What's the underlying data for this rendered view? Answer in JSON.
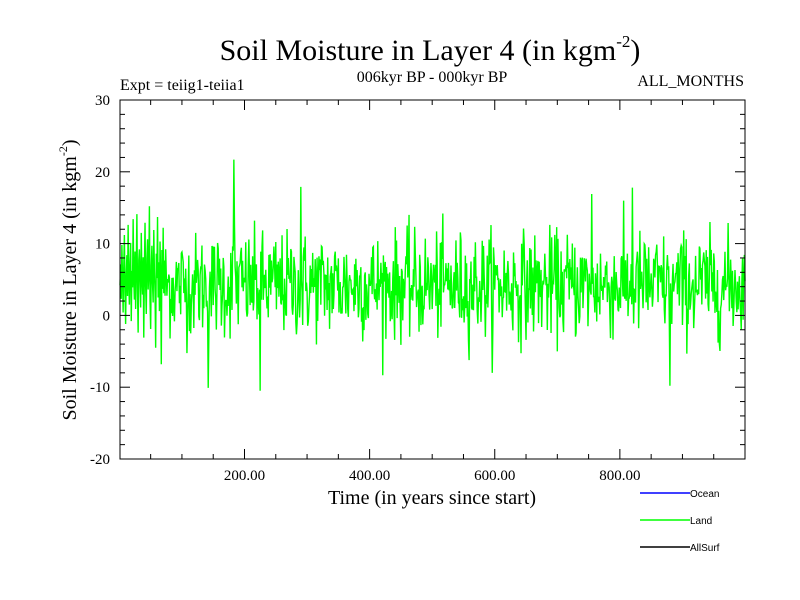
{
  "chart_data": {
    "type": "line",
    "title_main": "Soil Moisture in Layer 4 (in kgm",
    "title_sup": "-2",
    "title_close": ")",
    "subtitle_left": "Expt = teiig1-teiia1",
    "subtitle_center": "006kyr BP - 000kyr BP",
    "subtitle_right": "ALL_MONTHS",
    "xlabel": "Time (in years since start)",
    "ylabel_main": "Soil Moisture in Layer 4 (in kgm",
    "ylabel_sup": "-2",
    "ylabel_close": ")",
    "xlim": [
      1,
      1000
    ],
    "ylim": [
      -20,
      30
    ],
    "xticks": [
      200,
      400,
      600,
      800
    ],
    "xtick_labels": [
      "200.00",
      "400.00",
      "600.00",
      "800.00"
    ],
    "yticks": [
      -20,
      -10,
      0,
      10,
      20,
      30
    ],
    "ytick_labels": [
      "-20",
      "-10",
      "0",
      "10",
      "20",
      "30"
    ],
    "grid": false,
    "legend_position": "bottom-right",
    "series": [
      {
        "name": "Ocean",
        "color": "#0000ff",
        "x": [],
        "values": []
      },
      {
        "name": "Land",
        "color": "#00ff00",
        "x_start": 1,
        "x_step": 1,
        "value_summary": "year-to-year anomaly fluctuating roughly between -10 and 18 around a mean of about 4; peak about 21.7 near year 183, minimum about -10.5 near year 225",
        "values": [
          4.2,
          7.1,
          2.3,
          9.8,
          5.5,
          0.4,
          6.7,
          11.2,
          3.1,
          -1.2,
          5.9,
          8.4,
          2.7,
          12.6,
          4.8,
          1.5,
          7.3,
          10.1,
          -0.8,
          6.2,
          3.9,
          13.4,
          5.1,
          2.2,
          8.9,
          0.9,
          6.8,
          14.1,
          3.3,
          -2.4,
          7.7,
          9.2,
          4.6,
          1.1,
          11.5,
          5.3,
          2.9,
          8.1,
          -3.1,
          6.4,
          12.9,
          4.1,
          0.2,
          7.9,
          10.6,
          3.6,
          5.8,
          15.2,
          2.1,
          -1.9,
          6.9,
          9.7,
          4.4,
          1.8,
          11.9,
          6.1,
          3.2,
          -4.5,
          8.6,
          5.2,
          13.7,
          2.5,
          7.4,
          0.6,
          10.3,
          4.9,
          -6.8,
          9.1,
          3.7,
          12.2
        ]
      },
      {
        "name": "AllSurf",
        "color": "#000000",
        "x": [],
        "values": []
      }
    ]
  }
}
